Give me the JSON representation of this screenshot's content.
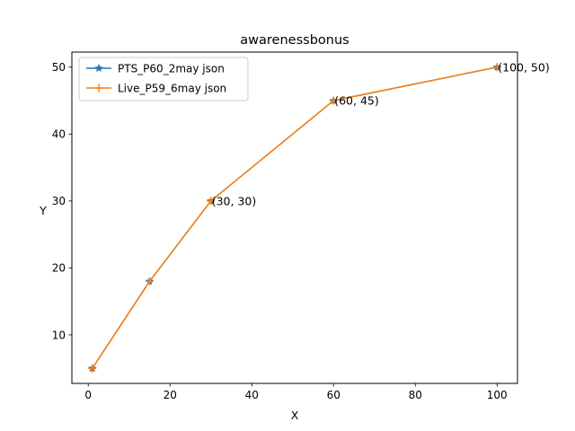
{
  "chart_data": {
    "type": "line",
    "title": "awarenessbonus",
    "xlabel": "X",
    "ylabel": "Y",
    "xlim": [
      -4,
      105
    ],
    "ylim": [
      2.75,
      52.25
    ],
    "xticks": [
      0,
      20,
      40,
      60,
      80,
      100
    ],
    "yticks": [
      10,
      20,
      30,
      40,
      50
    ],
    "grid": false,
    "legend_position": "top-left",
    "series": [
      {
        "name": "PTS_P60_2may json",
        "color": "#1f77b4",
        "marker": "star",
        "x": [
          1,
          15,
          30,
          60,
          100
        ],
        "y": [
          5,
          18,
          30,
          45,
          50
        ]
      },
      {
        "name": "Live_P59_6may json",
        "color": "#ff7f0e",
        "marker": "plus",
        "x": [
          1,
          15,
          30,
          60,
          100
        ],
        "y": [
          5,
          18,
          30,
          45,
          50
        ]
      }
    ],
    "annotations": [
      {
        "text": "(30, 30)",
        "x": 30,
        "y": 30
      },
      {
        "text": "(60, 45)",
        "x": 60,
        "y": 45
      },
      {
        "text": "(100, 50)",
        "x": 100,
        "y": 50
      }
    ]
  }
}
